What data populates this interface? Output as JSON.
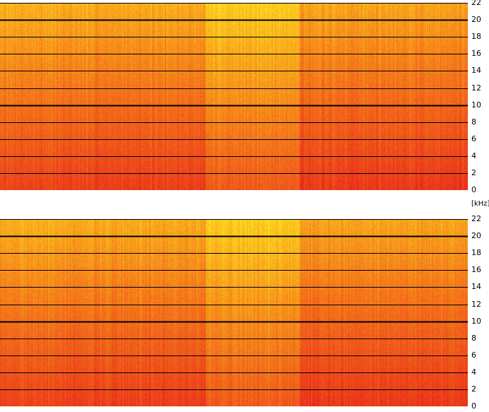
{
  "chart_data": [
    {
      "type": "heatmap",
      "channel": "top",
      "y_ticks": [
        "22",
        "20",
        "18",
        "16",
        "14",
        "12",
        "10",
        "8",
        "6",
        "4",
        "2",
        "0"
      ],
      "ylim": [
        0,
        22
      ],
      "grid": true,
      "colors": {
        "low": "#e8201a",
        "mid": "#f57f1a",
        "high": "#ffec20",
        "gridline": "#000000"
      }
    },
    {
      "type": "heatmap",
      "channel": "bottom",
      "y_ticks": [
        "22",
        "20",
        "18",
        "16",
        "14",
        "12",
        "10",
        "8",
        "6",
        "4",
        "2",
        "0"
      ],
      "ylim": [
        0,
        22
      ],
      "grid": true,
      "colors": {
        "low": "#e8201a",
        "mid": "#f57f1a",
        "high": "#ffec20",
        "gridline": "#000000"
      }
    }
  ],
  "axis": {
    "unit": "[kHz]"
  }
}
